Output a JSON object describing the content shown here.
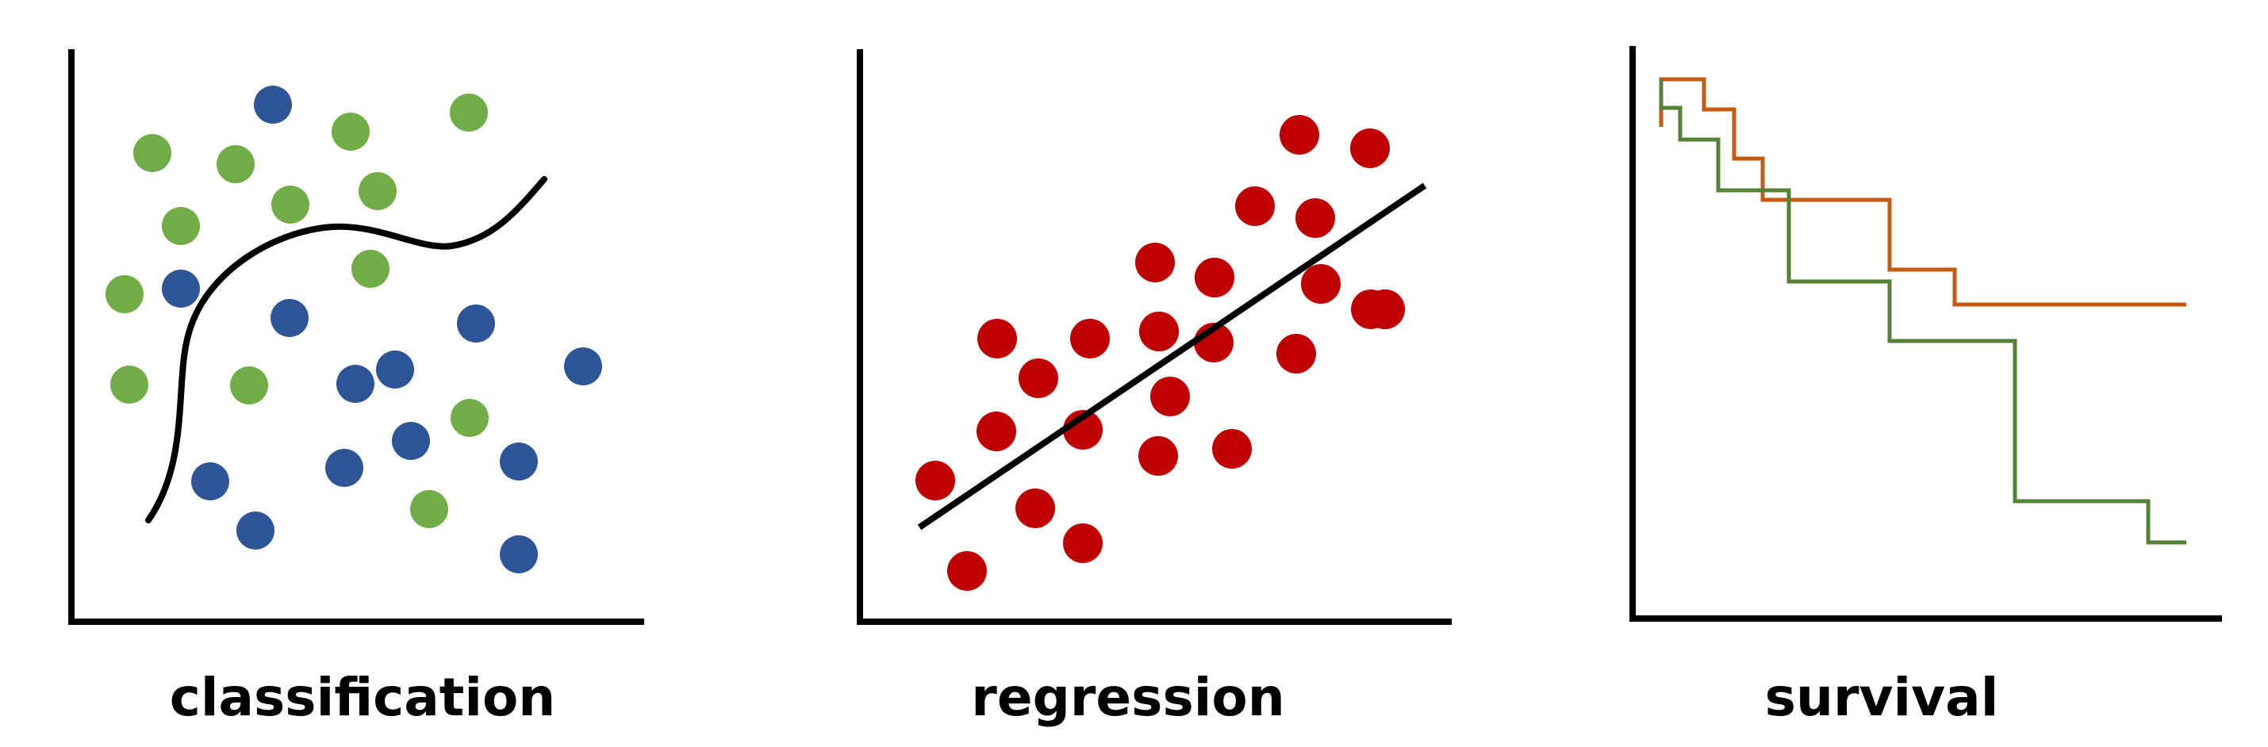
{
  "colors": {
    "green": "#70ad47",
    "blue": "#2e5597",
    "red": "#c00000",
    "orange": "#c55a11",
    "dark_green": "#548235",
    "black": "#000000"
  },
  "panels": [
    {
      "key": "classification",
      "label": "classification"
    },
    {
      "key": "regression",
      "label": "regression"
    },
    {
      "key": "survival",
      "label": "survival"
    }
  ],
  "classification": {
    "point_color_keys": [
      "green",
      "green",
      "green",
      "green",
      "green",
      "green",
      "green",
      "green",
      "green",
      "green",
      "green",
      "green",
      "green",
      "blue",
      "blue",
      "blue",
      "blue",
      "blue",
      "blue",
      "blue",
      "blue",
      "blue",
      "blue",
      "blue",
      "blue",
      "blue"
    ],
    "boundary_color_key": "black"
  },
  "regression": {
    "point_color_key": "red",
    "point_count": 27,
    "fit_color_key": "black"
  },
  "survival": {
    "curves": [
      {
        "color_key": "orange",
        "final_survival": 0.56
      },
      {
        "color_key": "dark_green",
        "final_survival": 0.14
      }
    ]
  }
}
